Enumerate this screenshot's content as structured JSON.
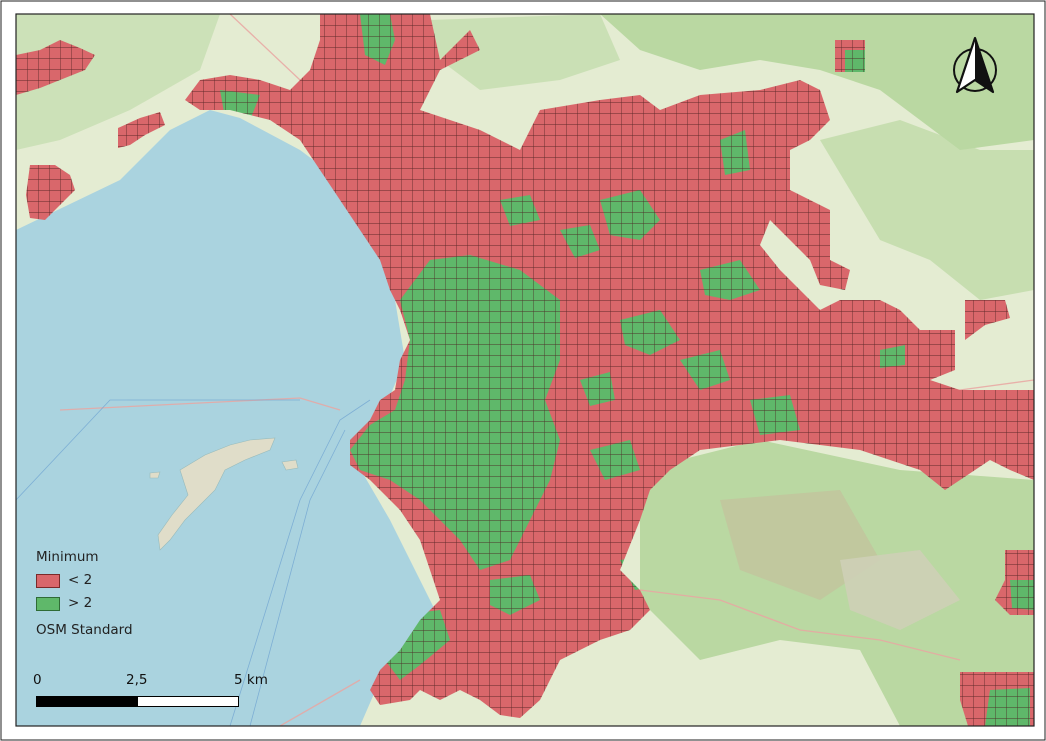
{
  "legend": {
    "title": "Minimum",
    "items": [
      {
        "label": "< 2",
        "color": "#d9676b"
      },
      {
        "label": "> 2",
        "color": "#5fb86a"
      }
    ],
    "basemap_label": "OSM Standard"
  },
  "scalebar": {
    "labels": [
      "0",
      "2,5",
      "5 km"
    ]
  },
  "north_arrow": {
    "icon": "north-arrow-icon"
  },
  "colors": {
    "sea": "#aad3df",
    "land": "#d9e9c4",
    "forest": "#a8cf92",
    "grid_low": "#d9676b",
    "grid_high": "#5fb86a",
    "grid_line": "#5a2424",
    "border": "#222222"
  }
}
